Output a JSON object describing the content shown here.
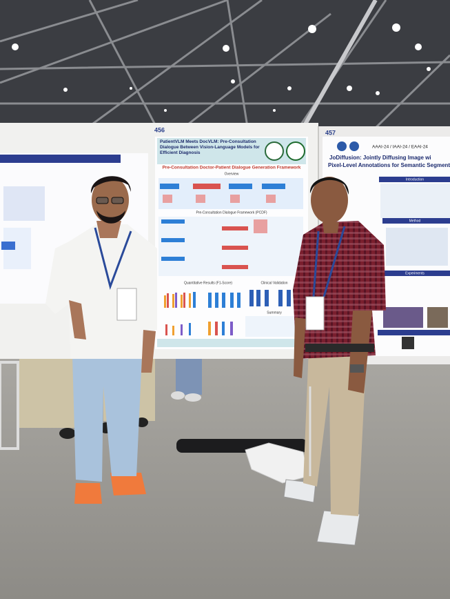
{
  "board_numbers": [
    "456",
    "457"
  ],
  "posters": [
    {
      "title": "PatientVLM Meets DocVLM: Pre-Consultation Dialogue Between Vision-Language Models for Efficient Diagnosis",
      "framework": "Pre-Consultation Doctor-Patient Dialogue Generation Framework",
      "sections": [
        "Overview",
        "Pre-Consultation Dialogue Framework (PCDF)",
        "Quantitative Results (F1-Score)",
        "Clinical Validation",
        "Summary"
      ]
    },
    {
      "conference": "AAAI-24 / IAAI-24 / EAAI-24",
      "title_lines": [
        "JoDiffusion: Jointly Diffusing Image wi",
        "Pixel-Level Annotations for Semantic Segmentatio"
      ],
      "sections": [
        "Introduction",
        "Method",
        "Experiments"
      ]
    }
  ]
}
